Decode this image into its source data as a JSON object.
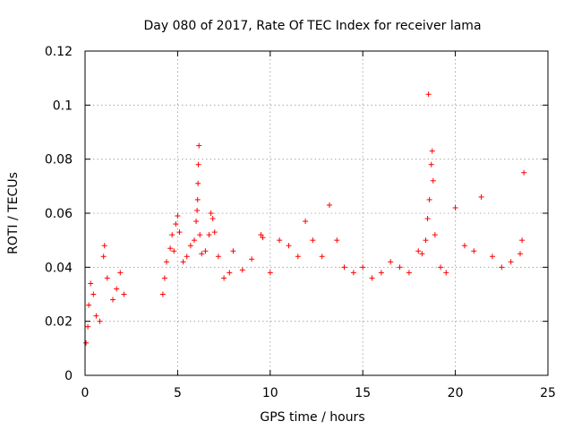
{
  "chart_data": {
    "type": "scatter",
    "title": "Day 080 of 2017, Rate Of TEC Index for receiver lama",
    "xlabel": "GPS time / hours",
    "ylabel": "ROTI / TECUs",
    "xlim": [
      0,
      25
    ],
    "ylim": [
      0,
      0.12
    ],
    "x_ticks": [
      "0",
      "5",
      "10",
      "15",
      "20",
      "25"
    ],
    "y_ticks": [
      "0",
      "0.02",
      "0.04",
      "0.06",
      "0.08",
      "0.1",
      "0.12"
    ],
    "grid": true,
    "marker": "+",
    "color": "#ff0000",
    "series": [
      {
        "points": [
          [
            0.05,
            0.012
          ],
          [
            0.15,
            0.018
          ],
          [
            0.2,
            0.026
          ],
          [
            0.3,
            0.034
          ],
          [
            0.45,
            0.03
          ],
          [
            0.6,
            0.022
          ],
          [
            0.8,
            0.02
          ],
          [
            1.0,
            0.044
          ],
          [
            1.05,
            0.048
          ],
          [
            1.2,
            0.036
          ],
          [
            1.5,
            0.028
          ],
          [
            1.7,
            0.032
          ],
          [
            1.9,
            0.038
          ],
          [
            2.1,
            0.03
          ],
          [
            4.2,
            0.03
          ],
          [
            4.3,
            0.036
          ],
          [
            4.4,
            0.042
          ],
          [
            4.6,
            0.047
          ],
          [
            4.7,
            0.052
          ],
          [
            4.8,
            0.046
          ],
          [
            4.9,
            0.056
          ],
          [
            5.0,
            0.059
          ],
          [
            5.1,
            0.053
          ],
          [
            5.3,
            0.042
          ],
          [
            5.5,
            0.044
          ],
          [
            5.7,
            0.048
          ],
          [
            5.9,
            0.05
          ],
          [
            6.0,
            0.057
          ],
          [
            6.05,
            0.061
          ],
          [
            6.08,
            0.065
          ],
          [
            6.1,
            0.071
          ],
          [
            6.12,
            0.078
          ],
          [
            6.15,
            0.085
          ],
          [
            6.2,
            0.052
          ],
          [
            6.3,
            0.045
          ],
          [
            6.5,
            0.046
          ],
          [
            6.7,
            0.052
          ],
          [
            6.8,
            0.06
          ],
          [
            6.9,
            0.058
          ],
          [
            7.0,
            0.053
          ],
          [
            7.2,
            0.044
          ],
          [
            7.5,
            0.036
          ],
          [
            7.8,
            0.038
          ],
          [
            8.0,
            0.046
          ],
          [
            8.5,
            0.039
          ],
          [
            9.0,
            0.043
          ],
          [
            9.5,
            0.052
          ],
          [
            9.6,
            0.051
          ],
          [
            10.0,
            0.038
          ],
          [
            10.5,
            0.05
          ],
          [
            11.0,
            0.048
          ],
          [
            11.5,
            0.044
          ],
          [
            11.9,
            0.057
          ],
          [
            12.3,
            0.05
          ],
          [
            12.8,
            0.044
          ],
          [
            13.2,
            0.063
          ],
          [
            13.6,
            0.05
          ],
          [
            14.0,
            0.04
          ],
          [
            14.5,
            0.038
          ],
          [
            15.0,
            0.04
          ],
          [
            15.5,
            0.036
          ],
          [
            16.0,
            0.038
          ],
          [
            16.5,
            0.042
          ],
          [
            17.0,
            0.04
          ],
          [
            17.5,
            0.038
          ],
          [
            18.0,
            0.046
          ],
          [
            18.2,
            0.045
          ],
          [
            18.4,
            0.05
          ],
          [
            18.5,
            0.058
          ],
          [
            18.55,
            0.104
          ],
          [
            18.6,
            0.065
          ],
          [
            18.7,
            0.078
          ],
          [
            18.75,
            0.083
          ],
          [
            18.8,
            0.072
          ],
          [
            18.9,
            0.052
          ],
          [
            19.2,
            0.04
          ],
          [
            19.5,
            0.038
          ],
          [
            20.0,
            0.062
          ],
          [
            20.5,
            0.048
          ],
          [
            21.0,
            0.046
          ],
          [
            21.4,
            0.066
          ],
          [
            22.0,
            0.044
          ],
          [
            22.5,
            0.04
          ],
          [
            23.0,
            0.042
          ],
          [
            23.5,
            0.045
          ],
          [
            23.6,
            0.05
          ],
          [
            23.7,
            0.075
          ]
        ]
      }
    ]
  }
}
